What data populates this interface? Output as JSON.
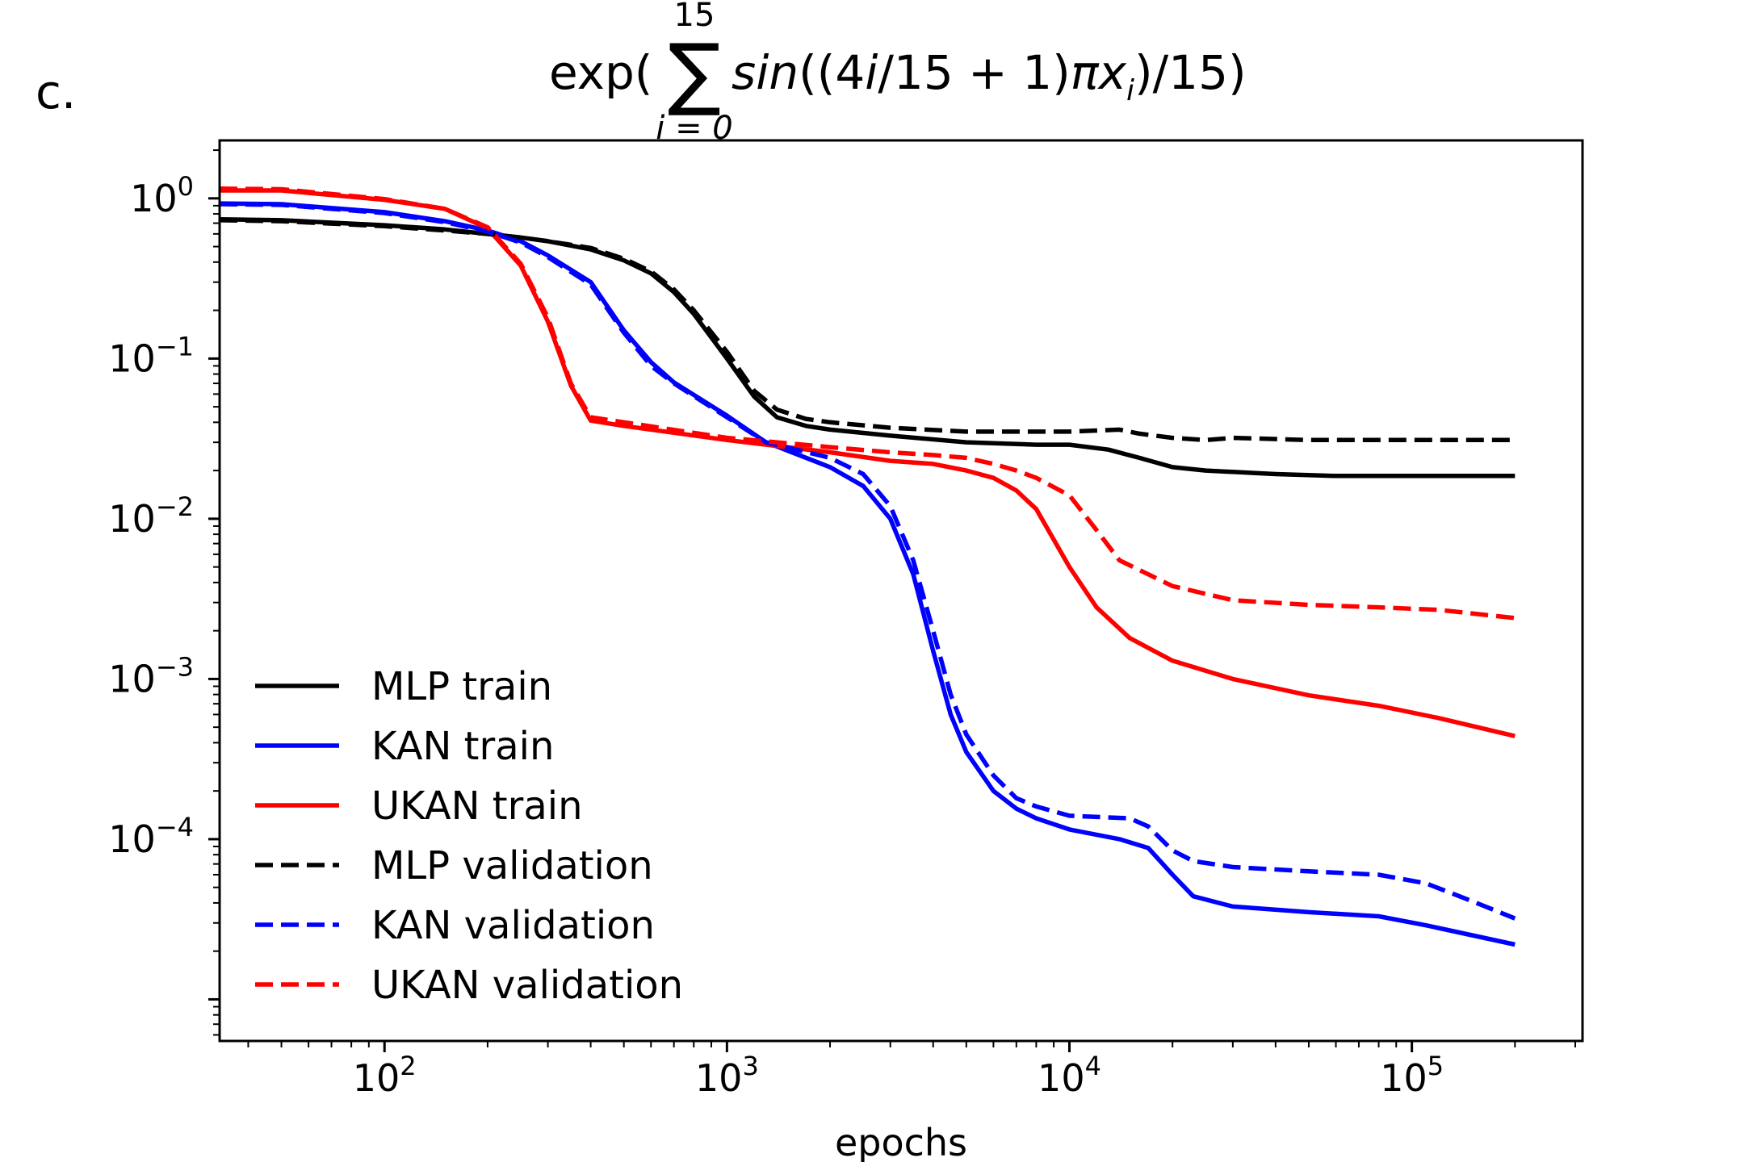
{
  "panel_label": "c.",
  "chart_data": {
    "type": "line",
    "title": "exp( ∑_{i=0}^{15} sin((4i/15 + 1)πx_i)/15)",
    "title_parts": {
      "prefix": "exp(",
      "sum_symbol": "∑",
      "upper_limit": "15",
      "lower_limit": "i = 0",
      "body_1": "sin",
      "body_2": "((4",
      "body_3": "i",
      "body_4": "/15 + 1)",
      "body_5": "πx",
      "body_6": "i",
      "body_7": ")/15)"
    },
    "xlabel": "epochs",
    "ylabel": "",
    "xscale": "log",
    "yscale": "log",
    "xlim": [
      33,
      315000
    ],
    "ylim": [
      5.5e-06,
      2.3
    ],
    "grid": false,
    "legend_position": "lower-left",
    "x_major_ticks": [
      {
        "value": 100,
        "base": "10",
        "exp": "2"
      },
      {
        "value": 1000,
        "base": "10",
        "exp": "3"
      },
      {
        "value": 10000,
        "base": "10",
        "exp": "4"
      },
      {
        "value": 100000,
        "base": "10",
        "exp": "5"
      }
    ],
    "y_major_ticks": [
      {
        "value": 1,
        "base": "10",
        "exp": "0"
      },
      {
        "value": 0.1,
        "base": "10",
        "exp": "−1"
      },
      {
        "value": 0.01,
        "base": "10",
        "exp": "−2"
      },
      {
        "value": 0.001,
        "base": "10",
        "exp": "−3"
      },
      {
        "value": 0.0001,
        "base": "10",
        "exp": "−4"
      }
    ],
    "series": [
      {
        "name": "MLP train",
        "color": "#000000",
        "style": "solid",
        "points": [
          [
            33,
            0.74
          ],
          [
            50,
            0.73
          ],
          [
            100,
            0.68
          ],
          [
            150,
            0.64
          ],
          [
            200,
            0.6
          ],
          [
            250,
            0.57
          ],
          [
            300,
            0.54
          ],
          [
            400,
            0.48
          ],
          [
            500,
            0.41
          ],
          [
            600,
            0.34
          ],
          [
            700,
            0.26
          ],
          [
            800,
            0.19
          ],
          [
            1000,
            0.1
          ],
          [
            1200,
            0.058
          ],
          [
            1400,
            0.043
          ],
          [
            1700,
            0.038
          ],
          [
            2000,
            0.036
          ],
          [
            3000,
            0.033
          ],
          [
            5000,
            0.03
          ],
          [
            8000,
            0.029
          ],
          [
            10000,
            0.029
          ],
          [
            13000,
            0.027
          ],
          [
            16000,
            0.024
          ],
          [
            20000,
            0.021
          ],
          [
            25000,
            0.02
          ],
          [
            40000,
            0.019
          ],
          [
            60000,
            0.0185
          ],
          [
            100000,
            0.0185
          ],
          [
            200000,
            0.0185
          ]
        ]
      },
      {
        "name": "KAN train",
        "color": "#0000ff",
        "style": "solid",
        "points": [
          [
            33,
            0.93
          ],
          [
            50,
            0.92
          ],
          [
            100,
            0.82
          ],
          [
            150,
            0.72
          ],
          [
            200,
            0.63
          ],
          [
            250,
            0.54
          ],
          [
            300,
            0.44
          ],
          [
            400,
            0.3
          ],
          [
            500,
            0.15
          ],
          [
            600,
            0.095
          ],
          [
            700,
            0.071
          ],
          [
            1000,
            0.044
          ],
          [
            1300,
            0.03
          ],
          [
            2000,
            0.021
          ],
          [
            2500,
            0.016
          ],
          [
            3000,
            0.01
          ],
          [
            3500,
            0.0045
          ],
          [
            4000,
            0.0015
          ],
          [
            4500,
            0.0006
          ],
          [
            5000,
            0.00035
          ],
          [
            6000,
            0.0002
          ],
          [
            7000,
            0.000155
          ],
          [
            8000,
            0.000135
          ],
          [
            10000,
            0.000115
          ],
          [
            14000,
            0.0001
          ],
          [
            17000,
            8.8e-05
          ],
          [
            20000,
            6e-05
          ],
          [
            23000,
            4.4e-05
          ],
          [
            30000,
            3.8e-05
          ],
          [
            50000,
            3.5e-05
          ],
          [
            80000,
            3.3e-05
          ],
          [
            110000,
            2.9e-05
          ],
          [
            200000,
            2.2e-05
          ]
        ]
      },
      {
        "name": "UKAN train",
        "color": "#ff0000",
        "style": "solid",
        "points": [
          [
            33,
            1.12
          ],
          [
            50,
            1.12
          ],
          [
            100,
            0.98
          ],
          [
            150,
            0.86
          ],
          [
            200,
            0.65
          ],
          [
            250,
            0.38
          ],
          [
            300,
            0.17
          ],
          [
            350,
            0.068
          ],
          [
            400,
            0.041
          ],
          [
            500,
            0.038
          ],
          [
            1000,
            0.031
          ],
          [
            2000,
            0.026
          ],
          [
            3000,
            0.023
          ],
          [
            4000,
            0.022
          ],
          [
            5000,
            0.02
          ],
          [
            6000,
            0.018
          ],
          [
            7000,
            0.015
          ],
          [
            8000,
            0.0115
          ],
          [
            10000,
            0.005
          ],
          [
            12000,
            0.0028
          ],
          [
            15000,
            0.0018
          ],
          [
            20000,
            0.0013
          ],
          [
            30000,
            0.001
          ],
          [
            50000,
            0.00079
          ],
          [
            80000,
            0.00068
          ],
          [
            120000,
            0.00057
          ],
          [
            200000,
            0.00044
          ]
        ]
      },
      {
        "name": "MLP validation",
        "color": "#000000",
        "style": "dashed",
        "points": [
          [
            33,
            0.73
          ],
          [
            50,
            0.72
          ],
          [
            100,
            0.67
          ],
          [
            150,
            0.63
          ],
          [
            200,
            0.6
          ],
          [
            250,
            0.57
          ],
          [
            300,
            0.54
          ],
          [
            400,
            0.49
          ],
          [
            500,
            0.42
          ],
          [
            600,
            0.35
          ],
          [
            700,
            0.27
          ],
          [
            800,
            0.2
          ],
          [
            1000,
            0.11
          ],
          [
            1200,
            0.063
          ],
          [
            1400,
            0.048
          ],
          [
            1700,
            0.042
          ],
          [
            2000,
            0.04
          ],
          [
            3000,
            0.037
          ],
          [
            5000,
            0.035
          ],
          [
            8000,
            0.035
          ],
          [
            10000,
            0.035
          ],
          [
            14000,
            0.036
          ],
          [
            16000,
            0.034
          ],
          [
            20000,
            0.032
          ],
          [
            25000,
            0.031
          ],
          [
            30000,
            0.032
          ],
          [
            50000,
            0.031
          ],
          [
            100000,
            0.031
          ],
          [
            200000,
            0.031
          ]
        ]
      },
      {
        "name": "KAN validation",
        "color": "#0000ff",
        "style": "dashed",
        "points": [
          [
            33,
            0.92
          ],
          [
            50,
            0.91
          ],
          [
            100,
            0.81
          ],
          [
            150,
            0.71
          ],
          [
            200,
            0.62
          ],
          [
            250,
            0.53
          ],
          [
            300,
            0.43
          ],
          [
            400,
            0.29
          ],
          [
            500,
            0.145
          ],
          [
            600,
            0.09
          ],
          [
            700,
            0.07
          ],
          [
            1000,
            0.043
          ],
          [
            1300,
            0.03
          ],
          [
            2000,
            0.024
          ],
          [
            2500,
            0.019
          ],
          [
            3000,
            0.012
          ],
          [
            3500,
            0.0055
          ],
          [
            4000,
            0.002
          ],
          [
            4500,
            0.0008
          ],
          [
            5000,
            0.00045
          ],
          [
            6000,
            0.00025
          ],
          [
            7000,
            0.00018
          ],
          [
            8000,
            0.00016
          ],
          [
            10000,
            0.00014
          ],
          [
            15000,
            0.000135
          ],
          [
            17000,
            0.00012
          ],
          [
            20000,
            8.5e-05
          ],
          [
            23000,
            7.3e-05
          ],
          [
            30000,
            6.7e-05
          ],
          [
            50000,
            6.3e-05
          ],
          [
            80000,
            6e-05
          ],
          [
            110000,
            5.3e-05
          ],
          [
            150000,
            4.1e-05
          ],
          [
            200000,
            3.2e-05
          ]
        ]
      },
      {
        "name": "UKAN validation",
        "color": "#ff0000",
        "style": "dashed",
        "points": [
          [
            33,
            1.15
          ],
          [
            50,
            1.14
          ],
          [
            100,
            0.99
          ],
          [
            150,
            0.86
          ],
          [
            200,
            0.66
          ],
          [
            250,
            0.39
          ],
          [
            300,
            0.18
          ],
          [
            350,
            0.07
          ],
          [
            400,
            0.043
          ],
          [
            500,
            0.04
          ],
          [
            1000,
            0.032
          ],
          [
            2000,
            0.028
          ],
          [
            3000,
            0.026
          ],
          [
            4000,
            0.025
          ],
          [
            5000,
            0.024
          ],
          [
            6000,
            0.022
          ],
          [
            7000,
            0.02
          ],
          [
            8000,
            0.018
          ],
          [
            10000,
            0.014
          ],
          [
            12000,
            0.0085
          ],
          [
            14000,
            0.0055
          ],
          [
            17000,
            0.0045
          ],
          [
            20000,
            0.0038
          ],
          [
            30000,
            0.0031
          ],
          [
            50000,
            0.0029
          ],
          [
            80000,
            0.0028
          ],
          [
            120000,
            0.0027
          ],
          [
            200000,
            0.0024
          ]
        ]
      }
    ]
  }
}
